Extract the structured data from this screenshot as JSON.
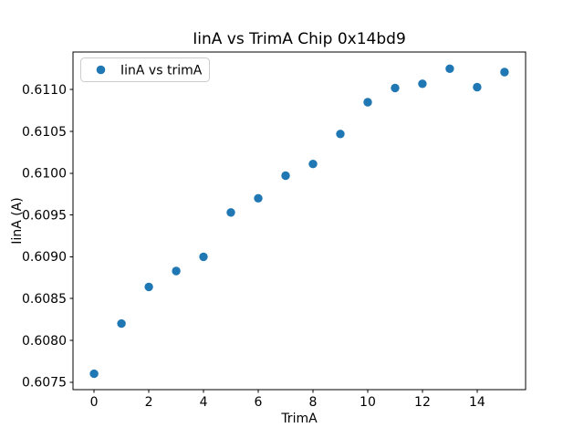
{
  "chart_data": {
    "type": "scatter",
    "title": "IinA vs TrimA Chip 0x14bd9",
    "xlabel": "TrimA",
    "ylabel": "IinA (A)",
    "legend": [
      "IinA vs trimA"
    ],
    "legend_position": "upper left",
    "marker_color": "#1f77b4",
    "grid": false,
    "x": [
      0,
      1,
      2,
      3,
      4,
      5,
      6,
      7,
      8,
      9,
      10,
      11,
      12,
      13,
      14,
      15
    ],
    "y": [
      0.6076,
      0.6082,
      0.60864,
      0.60883,
      0.609,
      0.60953,
      0.6097,
      0.60997,
      0.61011,
      0.61047,
      0.61085,
      0.61102,
      0.61107,
      0.61125,
      0.61103,
      0.61121
    ],
    "xlim": [
      -0.77,
      15.77
    ],
    "ylim": [
      0.60741,
      0.61145
    ],
    "xticks": [
      0,
      2,
      4,
      6,
      8,
      10,
      12,
      14
    ],
    "xtick_labels": [
      "0",
      "2",
      "4",
      "6",
      "8",
      "10",
      "12",
      "14"
    ],
    "yticks": [
      0.6075,
      0.608,
      0.6085,
      0.609,
      0.6095,
      0.61,
      0.6105,
      0.611
    ],
    "ytick_labels": [
      "0.6075",
      "0.6080",
      "0.6085",
      "0.6090",
      "0.6095",
      "0.6100",
      "0.6105",
      "0.6110"
    ]
  }
}
